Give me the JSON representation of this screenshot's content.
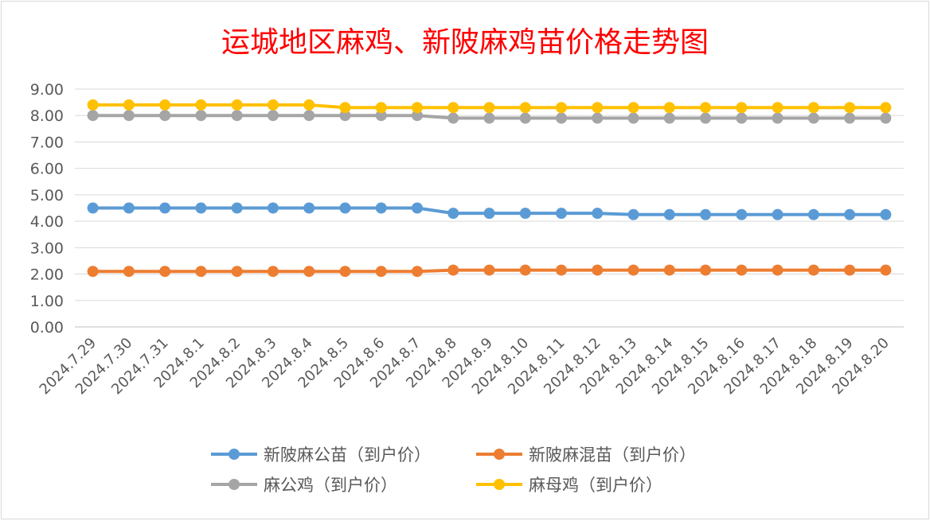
{
  "chart_data": {
    "type": "line",
    "title": "运城地区麻鸡、新陂麻鸡苗价格走势图",
    "xlabel": "",
    "ylabel": "",
    "ylim": [
      0,
      9
    ],
    "yticks": [
      "0.00",
      "1.00",
      "2.00",
      "3.00",
      "4.00",
      "5.00",
      "6.00",
      "7.00",
      "8.00",
      "9.00"
    ],
    "grid": true,
    "legend_position": "bottom",
    "categories": [
      "2024.7.29",
      "2024.7.30",
      "2024.7.31",
      "2024.8.1",
      "2024.8.2",
      "2024.8.3",
      "2024.8.4",
      "2024.8.5",
      "2024.8.6",
      "2024.8.7",
      "2024.8.8",
      "2024.8.9",
      "2024.8.10",
      "2024.8.11",
      "2024.8.12",
      "2024.8.13",
      "2024.8.14",
      "2024.8.15",
      "2024.8.16",
      "2024.8.17",
      "2024.8.18",
      "2024.8.19",
      "2024.8.20"
    ],
    "series": [
      {
        "name": "新陂麻公苗（到户价）",
        "color": "#5b9bd5",
        "values": [
          4.5,
          4.5,
          4.5,
          4.5,
          4.5,
          4.5,
          4.5,
          4.5,
          4.5,
          4.5,
          4.3,
          4.3,
          4.3,
          4.3,
          4.3,
          4.25,
          4.25,
          4.25,
          4.25,
          4.25,
          4.25,
          4.25,
          4.25
        ]
      },
      {
        "name": "新陂麻混苗（到户价）",
        "color": "#ed7d31",
        "values": [
          2.1,
          2.1,
          2.1,
          2.1,
          2.1,
          2.1,
          2.1,
          2.1,
          2.1,
          2.1,
          2.15,
          2.15,
          2.15,
          2.15,
          2.15,
          2.15,
          2.15,
          2.15,
          2.15,
          2.15,
          2.15,
          2.15,
          2.15
        ]
      },
      {
        "name": "麻公鸡（到户价）",
        "color": "#a5a5a5",
        "values": [
          8.0,
          8.0,
          8.0,
          8.0,
          8.0,
          8.0,
          8.0,
          8.0,
          8.0,
          8.0,
          7.9,
          7.9,
          7.9,
          7.9,
          7.9,
          7.9,
          7.9,
          7.9,
          7.9,
          7.9,
          7.9,
          7.9,
          7.9
        ]
      },
      {
        "name": "麻母鸡（到户价）",
        "color": "#ffc000",
        "values": [
          8.4,
          8.4,
          8.4,
          8.4,
          8.4,
          8.4,
          8.4,
          8.3,
          8.3,
          8.3,
          8.3,
          8.3,
          8.3,
          8.3,
          8.3,
          8.3,
          8.3,
          8.3,
          8.3,
          8.3,
          8.3,
          8.3,
          8.3
        ]
      }
    ]
  }
}
